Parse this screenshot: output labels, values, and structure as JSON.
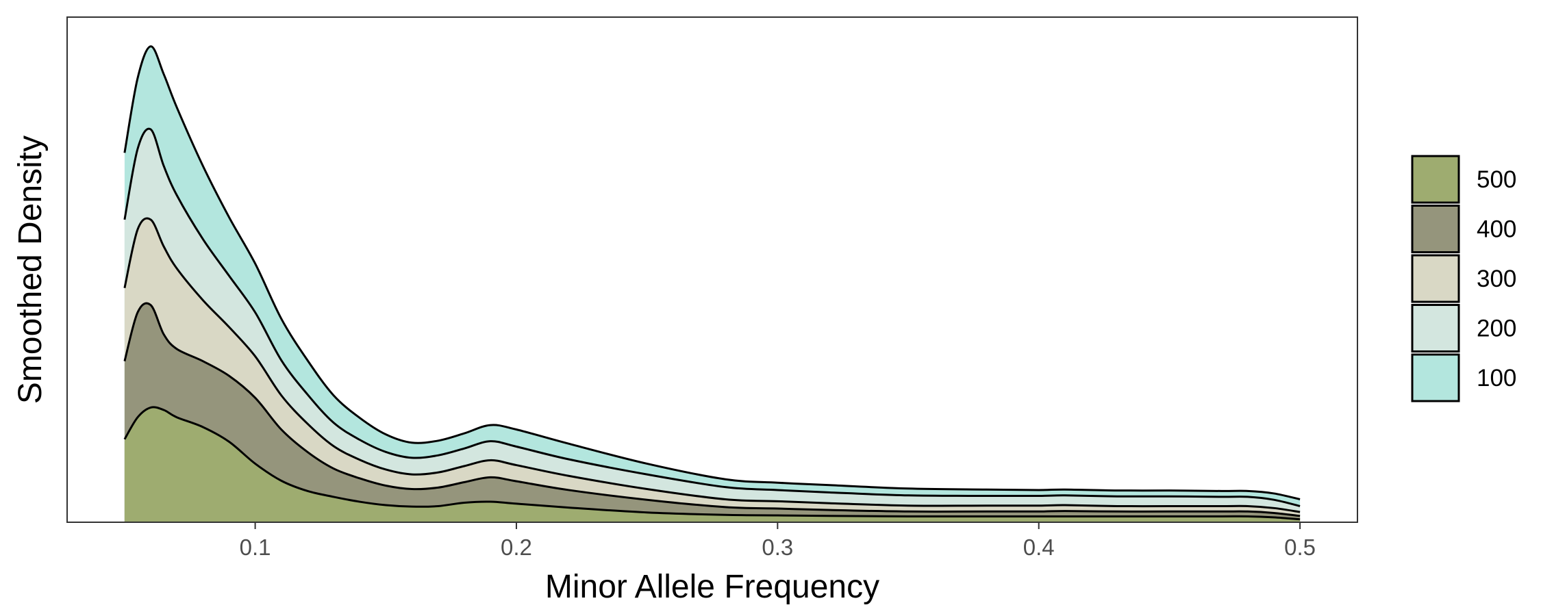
{
  "chart_data": {
    "type": "area",
    "stacked": true,
    "title": "",
    "xlabel": "Minor Allele Frequency",
    "ylabel": "Smoothed Density",
    "xlim": [
      0.028,
      0.522
    ],
    "ylim": [
      0,
      1.035
    ],
    "x_ticks": [
      0.1,
      0.2,
      0.3,
      0.4,
      0.5
    ],
    "x_tick_labels": [
      "0.1",
      "0.2",
      "0.3",
      "0.4",
      "0.5"
    ],
    "y_ticks_shown": false,
    "grid": false,
    "legend_position": "right",
    "x": [
      0.05,
      0.055,
      0.06,
      0.065,
      0.07,
      0.08,
      0.09,
      0.1,
      0.11,
      0.12,
      0.13,
      0.14,
      0.15,
      0.16,
      0.17,
      0.18,
      0.19,
      0.2,
      0.22,
      0.25,
      0.28,
      0.3,
      0.32,
      0.35,
      0.38,
      0.4,
      0.41,
      0.43,
      0.45,
      0.47,
      0.48,
      0.49,
      0.5
    ],
    "series": [
      {
        "name": "500",
        "color": "#9eac70",
        "values": [
          0.17,
          0.215,
          0.235,
          0.23,
          0.215,
          0.195,
          0.165,
          0.12,
          0.085,
          0.064,
          0.052,
          0.042,
          0.035,
          0.032,
          0.033,
          0.04,
          0.042,
          0.038,
          0.03,
          0.02,
          0.015,
          0.014,
          0.013,
          0.012,
          0.012,
          0.012,
          0.012,
          0.012,
          0.012,
          0.012,
          0.012,
          0.01,
          0.006
        ]
      },
      {
        "name": "400",
        "color": "#95957c",
        "values": [
          0.16,
          0.215,
          0.21,
          0.155,
          0.14,
          0.135,
          0.135,
          0.135,
          0.105,
          0.08,
          0.058,
          0.048,
          0.04,
          0.036,
          0.038,
          0.042,
          0.05,
          0.046,
          0.036,
          0.026,
          0.016,
          0.014,
          0.012,
          0.01,
          0.01,
          0.01,
          0.011,
          0.01,
          0.01,
          0.01,
          0.01,
          0.009,
          0.007
        ]
      },
      {
        "name": "300",
        "color": "#d9d8c5",
        "values": [
          0.15,
          0.17,
          0.175,
          0.18,
          0.165,
          0.125,
          0.1,
          0.085,
          0.07,
          0.058,
          0.046,
          0.038,
          0.033,
          0.03,
          0.031,
          0.033,
          0.035,
          0.033,
          0.029,
          0.022,
          0.016,
          0.015,
          0.014,
          0.012,
          0.012,
          0.012,
          0.012,
          0.011,
          0.011,
          0.011,
          0.011,
          0.01,
          0.008
        ]
      },
      {
        "name": "200",
        "color": "#d3e6df",
        "values": [
          0.14,
          0.165,
          0.185,
          0.165,
          0.15,
          0.125,
          0.105,
          0.09,
          0.072,
          0.06,
          0.048,
          0.041,
          0.036,
          0.034,
          0.035,
          0.036,
          0.039,
          0.038,
          0.034,
          0.03,
          0.025,
          0.023,
          0.022,
          0.021,
          0.02,
          0.02,
          0.02,
          0.02,
          0.02,
          0.019,
          0.019,
          0.017,
          0.012
        ]
      },
      {
        "name": "100",
        "color": "#b3e6de",
        "values": [
          0.137,
          0.145,
          0.17,
          0.188,
          0.18,
          0.15,
          0.12,
          0.1,
          0.085,
          0.07,
          0.056,
          0.045,
          0.036,
          0.031,
          0.03,
          0.031,
          0.033,
          0.035,
          0.032,
          0.022,
          0.016,
          0.015,
          0.015,
          0.014,
          0.013,
          0.012,
          0.012,
          0.012,
          0.012,
          0.012,
          0.012,
          0.013,
          0.014
        ]
      }
    ]
  }
}
